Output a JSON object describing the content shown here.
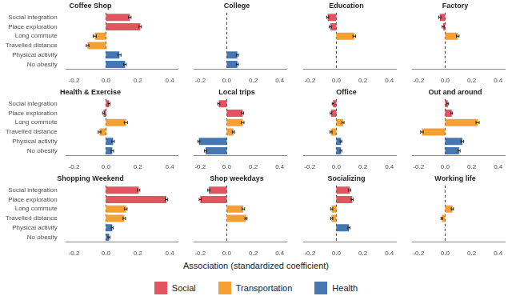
{
  "xlabel": "Association (standardized coefficient)",
  "legend": "bottom",
  "chart_data": [
    {
      "type": "bar",
      "orientation": "horizontal",
      "title": "Coffee Shop",
      "categories": [
        "Social integration",
        "Place exploration",
        "Long commute",
        "Travelled distance",
        "Physical activity",
        "No obesity"
      ],
      "xlim": [
        -0.25,
        0.45
      ],
      "xticks": [
        -0.2,
        {
          "value": 0,
          "label": "0.0"
        },
        0.2,
        0.4
      ],
      "series": [
        {
          "name": "Social",
          "color": "#e15561",
          "values": [
            0.15,
            0.215,
            null,
            null,
            null,
            null
          ],
          "errors": [
            0.008,
            0.008,
            null,
            null,
            null,
            null
          ]
        },
        {
          "name": "Transportation",
          "color": "#f5a033",
          "values": [
            null,
            null,
            -0.07,
            -0.115,
            null,
            null
          ],
          "errors": [
            null,
            null,
            0.01,
            0.008,
            null,
            null
          ]
        },
        {
          "name": "Health",
          "color": "#4677b0",
          "values": [
            null,
            null,
            null,
            null,
            0.085,
            0.12
          ],
          "errors": [
            null,
            null,
            null,
            null,
            0.01,
            0.008
          ]
        }
      ]
    },
    {
      "type": "bar",
      "orientation": "horizontal",
      "title": "College",
      "tick_labels": "x",
      "categories": [
        "Social integration",
        "Place exploration",
        "Long commute",
        "Travelled distance",
        "Physical activity",
        "No obesity"
      ],
      "xlim": [
        -0.25,
        0.45
      ],
      "xticks": [
        -0.2,
        {
          "value": 0,
          "label": "0.0"
        },
        0.2,
        0.4
      ],
      "series": [
        {
          "name": "Social",
          "color": "#e15561",
          "values": [
            null,
            null,
            null,
            null,
            null,
            null
          ],
          "errors": [
            null,
            null,
            null,
            null,
            null,
            null
          ]
        },
        {
          "name": "Transportation",
          "color": "#f5a033",
          "values": [
            null,
            null,
            null,
            null,
            null,
            null
          ],
          "errors": [
            null,
            null,
            null,
            null,
            null,
            null
          ]
        },
        {
          "name": "Health",
          "color": "#4677b0",
          "values": [
            null,
            null,
            null,
            null,
            0.08,
            0.08
          ],
          "errors": [
            null,
            null,
            null,
            null,
            0.008,
            0.008
          ]
        }
      ]
    },
    {
      "type": "bar",
      "orientation": "horizontal",
      "title": "Education",
      "tick_labels": "x",
      "categories": [
        "Social integration",
        "Place exploration",
        "Long commute",
        "Travelled distance",
        "Physical activity",
        "No obesity"
      ],
      "xlim": [
        -0.25,
        0.45
      ],
      "xticks": [
        -0.2,
        {
          "value": 0,
          "label": "0.0"
        },
        0.2,
        0.4
      ],
      "series": [
        {
          "name": "Social",
          "color": "#e15561",
          "values": [
            -0.065,
            -0.045,
            null,
            null,
            null,
            null
          ],
          "errors": [
            0.008,
            0.008,
            null,
            null,
            null,
            null
          ]
        },
        {
          "name": "Transportation",
          "color": "#f5a033",
          "values": [
            null,
            null,
            0.135,
            null,
            null,
            null
          ],
          "errors": [
            null,
            null,
            0.01,
            null,
            null,
            null
          ]
        },
        {
          "name": "Health",
          "color": "#4677b0",
          "values": [
            null,
            null,
            null,
            null,
            null,
            null
          ],
          "errors": [
            null,
            null,
            null,
            null,
            null,
            null
          ]
        }
      ]
    },
    {
      "type": "bar",
      "orientation": "horizontal",
      "title": "Factory",
      "tick_labels": "x",
      "categories": [
        "Social integration",
        "Place exploration",
        "Long commute",
        "Travelled distance",
        "Physical activity",
        "No obesity"
      ],
      "xlim": [
        -0.25,
        0.45
      ],
      "xticks": [
        -0.2,
        {
          "value": 0,
          "label": "0.0"
        },
        0.2,
        0.4
      ],
      "series": [
        {
          "name": "Social",
          "color": "#e15561",
          "values": [
            -0.04,
            -0.015,
            null,
            null,
            null,
            null
          ],
          "errors": [
            0.008,
            0.008,
            null,
            null,
            null,
            null
          ]
        },
        {
          "name": "Transportation",
          "color": "#f5a033",
          "values": [
            null,
            null,
            0.095,
            null,
            null,
            null
          ],
          "errors": [
            null,
            null,
            0.01,
            null,
            null,
            null
          ]
        },
        {
          "name": "Health",
          "color": "#4677b0",
          "values": [
            null,
            null,
            null,
            null,
            null,
            null
          ],
          "errors": [
            null,
            null,
            null,
            null,
            null,
            null
          ]
        }
      ]
    },
    {
      "type": "bar",
      "orientation": "horizontal",
      "title": "Health & Exercise",
      "categories": [
        "Social integration",
        "Place exploration",
        "Long commute",
        "Travelled distance",
        "Physical activity",
        "No obesity"
      ],
      "xlim": [
        -0.25,
        0.45
      ],
      "xticks": [
        -0.2,
        {
          "value": 0,
          "label": "0.0"
        },
        0.2,
        0.4
      ],
      "series": [
        {
          "name": "Social",
          "color": "#e15561",
          "values": [
            0.02,
            -0.015,
            null,
            null,
            null,
            null
          ],
          "errors": [
            0.006,
            0.006,
            null,
            null,
            null,
            null
          ]
        },
        {
          "name": "Transportation",
          "color": "#f5a033",
          "values": [
            null,
            null,
            0.125,
            -0.04,
            null,
            null
          ],
          "errors": [
            null,
            null,
            0.01,
            0.008,
            null,
            null
          ]
        },
        {
          "name": "Health",
          "color": "#4677b0",
          "values": [
            null,
            null,
            null,
            null,
            0.045,
            0.04
          ],
          "errors": [
            null,
            null,
            null,
            null,
            0.008,
            0.008
          ]
        }
      ]
    },
    {
      "type": "bar",
      "orientation": "horizontal",
      "title": "Local trips",
      "tick_labels": "x",
      "categories": [
        "Social integration",
        "Place exploration",
        "Long commute",
        "Travelled distance",
        "Physical activity",
        "No obesity"
      ],
      "xlim": [
        -0.25,
        0.45
      ],
      "xticks": [
        -0.2,
        {
          "value": 0,
          "label": "0.0"
        },
        0.2,
        0.4
      ],
      "series": [
        {
          "name": "Social",
          "color": "#e15561",
          "values": [
            -0.06,
            0.12,
            null,
            null,
            null,
            null
          ],
          "errors": [
            0.008,
            0.008,
            null,
            null,
            null,
            null
          ]
        },
        {
          "name": "Transportation",
          "color": "#f5a033",
          "values": [
            null,
            null,
            0.12,
            0.05,
            null,
            null
          ],
          "errors": [
            null,
            null,
            0.01,
            0.008,
            null,
            null
          ]
        },
        {
          "name": "Health",
          "color": "#4677b0",
          "values": [
            null,
            null,
            null,
            null,
            -0.21,
            -0.16
          ],
          "errors": [
            null,
            null,
            null,
            null,
            0.008,
            0.008
          ]
        }
      ]
    },
    {
      "type": "bar",
      "orientation": "horizontal",
      "title": "Office",
      "tick_labels": "x",
      "categories": [
        "Social integration",
        "Place exploration",
        "Long commute",
        "Travelled distance",
        "Physical activity",
        "No obesity"
      ],
      "xlim": [
        -0.25,
        0.45
      ],
      "xticks": [
        -0.2,
        {
          "value": 0,
          "label": "0.0"
        },
        0.2,
        0.4
      ],
      "series": [
        {
          "name": "Social",
          "color": "#e15561",
          "values": [
            -0.025,
            -0.04,
            null,
            null,
            null,
            null
          ],
          "errors": [
            0.006,
            0.006,
            null,
            null,
            null,
            null
          ]
        },
        {
          "name": "Transportation",
          "color": "#f5a033",
          "values": [
            null,
            null,
            0.05,
            -0.04,
            null,
            null
          ],
          "errors": [
            null,
            null,
            0.008,
            0.008,
            null,
            null
          ]
        },
        {
          "name": "Health",
          "color": "#4677b0",
          "values": [
            null,
            null,
            null,
            null,
            0.035,
            0.035
          ],
          "errors": [
            null,
            null,
            null,
            null,
            0.006,
            0.006
          ]
        }
      ]
    },
    {
      "type": "bar",
      "orientation": "horizontal",
      "title": "Out and around",
      "tick_labels": "x",
      "categories": [
        "Social integration",
        "Place exploration",
        "Long commute",
        "Travelled distance",
        "Physical activity",
        "No obesity"
      ],
      "xlim": [
        -0.25,
        0.45
      ],
      "xticks": [
        -0.2,
        {
          "value": 0,
          "label": "0.0"
        },
        0.2,
        0.4
      ],
      "series": [
        {
          "name": "Social",
          "color": "#e15561",
          "values": [
            0.02,
            0.05,
            null,
            null,
            null,
            null
          ],
          "errors": [
            0.006,
            0.006,
            null,
            null,
            null,
            null
          ]
        },
        {
          "name": "Transportation",
          "color": "#f5a033",
          "values": [
            null,
            null,
            0.245,
            -0.175,
            null,
            null
          ],
          "errors": [
            null,
            null,
            0.012,
            0.01,
            null,
            null
          ]
        },
        {
          "name": "Health",
          "color": "#4677b0",
          "values": [
            null,
            null,
            null,
            null,
            0.13,
            0.105
          ],
          "errors": [
            null,
            null,
            null,
            null,
            0.01,
            0.008
          ]
        }
      ]
    },
    {
      "type": "bar",
      "orientation": "horizontal",
      "title": "Shopping Weekend",
      "categories": [
        "Social integration",
        "Place exploration",
        "Long commute",
        "Travelled distance",
        "Physical activity",
        "No obesity"
      ],
      "xlim": [
        -0.25,
        0.45
      ],
      "xticks": [
        -0.2,
        {
          "value": 0,
          "label": "0.0"
        },
        0.2,
        0.4
      ],
      "series": [
        {
          "name": "Social",
          "color": "#e15561",
          "values": [
            0.205,
            0.38,
            null,
            null,
            null,
            null
          ],
          "errors": [
            0.008,
            0.008,
            null,
            null,
            null,
            null
          ]
        },
        {
          "name": "Transportation",
          "color": "#f5a033",
          "values": [
            null,
            null,
            0.125,
            0.115,
            null,
            null
          ],
          "errors": [
            null,
            null,
            0.008,
            0.008,
            null,
            null
          ]
        },
        {
          "name": "Health",
          "color": "#4677b0",
          "values": [
            null,
            null,
            null,
            null,
            0.04,
            0.02
          ],
          "errors": [
            null,
            null,
            null,
            null,
            0.006,
            0.006
          ]
        }
      ]
    },
    {
      "type": "bar",
      "orientation": "horizontal",
      "title": "Shop weekdays",
      "tick_labels": "x",
      "categories": [
        "Social integration",
        "Place exploration",
        "Long commute",
        "Travelled distance",
        "Physical activity",
        "No obesity"
      ],
      "xlim": [
        -0.25,
        0.45
      ],
      "xticks": [
        -0.2,
        {
          "value": 0,
          "label": "0.0"
        },
        0.2,
        0.4
      ],
      "series": [
        {
          "name": "Social",
          "color": "#e15561",
          "values": [
            -0.135,
            -0.2,
            null,
            null,
            null,
            null
          ],
          "errors": [
            0.008,
            0.008,
            null,
            null,
            null,
            null
          ]
        },
        {
          "name": "Transportation",
          "color": "#f5a033",
          "values": [
            null,
            null,
            0.125,
            0.145,
            null,
            null
          ],
          "errors": [
            null,
            null,
            0.01,
            0.008,
            null,
            null
          ]
        },
        {
          "name": "Health",
          "color": "#4677b0",
          "values": [
            null,
            null,
            null,
            null,
            null,
            null
          ],
          "errors": [
            null,
            null,
            null,
            null,
            null,
            null
          ]
        }
      ]
    },
    {
      "type": "bar",
      "orientation": "horizontal",
      "title": "Socializing",
      "tick_labels": "x",
      "categories": [
        "Social integration",
        "Place exploration",
        "Long commute",
        "Travelled distance",
        "Physical activity",
        "No obesity"
      ],
      "xlim": [
        -0.25,
        0.45
      ],
      "xticks": [
        -0.2,
        {
          "value": 0,
          "label": "0.0"
        },
        0.2,
        0.4
      ],
      "series": [
        {
          "name": "Social",
          "color": "#e15561",
          "values": [
            0.1,
            0.12,
            null,
            null,
            null,
            null
          ],
          "errors": [
            0.008,
            0.008,
            null,
            null,
            null,
            null
          ]
        },
        {
          "name": "Transportation",
          "color": "#f5a033",
          "values": [
            null,
            null,
            -0.035,
            -0.035,
            null,
            null
          ],
          "errors": [
            null,
            null,
            0.008,
            0.008,
            null,
            null
          ]
        },
        {
          "name": "Health",
          "color": "#4677b0",
          "values": [
            null,
            null,
            null,
            null,
            0.095,
            null
          ],
          "errors": [
            null,
            null,
            null,
            null,
            0.008,
            null
          ]
        }
      ]
    },
    {
      "type": "bar",
      "orientation": "horizontal",
      "title": "Working life",
      "tick_labels": "x",
      "categories": [
        "Social integration",
        "Place exploration",
        "Long commute",
        "Travelled distance",
        "Physical activity",
        "No obesity"
      ],
      "xlim": [
        -0.25,
        0.45
      ],
      "xticks": [
        -0.2,
        {
          "value": 0,
          "label": "0.0"
        },
        0.2,
        0.4
      ],
      "series": [
        {
          "name": "Social",
          "color": "#e15561",
          "values": [
            null,
            null,
            null,
            null,
            null,
            null
          ],
          "errors": [
            null,
            null,
            null,
            null,
            null,
            null
          ]
        },
        {
          "name": "Transportation",
          "color": "#f5a033",
          "values": [
            null,
            null,
            0.055,
            -0.025,
            null,
            null
          ],
          "errors": [
            null,
            null,
            0.008,
            0.006,
            null,
            null
          ]
        },
        {
          "name": "Health",
          "color": "#4677b0",
          "values": [
            null,
            null,
            null,
            null,
            null,
            null
          ],
          "errors": [
            null,
            null,
            null,
            null,
            null,
            null
          ]
        }
      ]
    }
  ]
}
